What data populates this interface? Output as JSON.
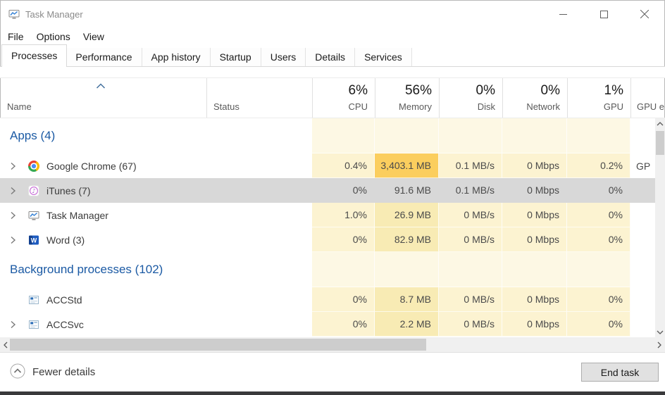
{
  "window": {
    "title": "Task Manager"
  },
  "menu": {
    "items": [
      "File",
      "Options",
      "View"
    ]
  },
  "tabs": [
    {
      "label": "Processes",
      "active": true
    },
    {
      "label": "Performance",
      "active": false
    },
    {
      "label": "App history",
      "active": false
    },
    {
      "label": "Startup",
      "active": false
    },
    {
      "label": "Users",
      "active": false
    },
    {
      "label": "Details",
      "active": false
    },
    {
      "label": "Services",
      "active": false
    }
  ],
  "table": {
    "name_header": "Name",
    "status_header": "Status",
    "usage_headers": [
      {
        "id": "cpu",
        "percent": "6%",
        "label": "CPU"
      },
      {
        "id": "memory",
        "percent": "56%",
        "label": "Memory"
      },
      {
        "id": "disk",
        "percent": "0%",
        "label": "Disk"
      },
      {
        "id": "network",
        "percent": "0%",
        "label": "Network"
      },
      {
        "id": "gpu",
        "percent": "1%",
        "label": "GPU"
      },
      {
        "id": "gpu-engine",
        "percent": "",
        "label": "GPU e"
      }
    ],
    "rows": [
      {
        "type": "section",
        "label": "Apps (4)"
      },
      {
        "type": "process",
        "name": "Google Chrome (67)",
        "icon": "chrome",
        "expandable": true,
        "selected": false,
        "status": "",
        "cpu": "0.4%",
        "memory": "3,403.1 MB",
        "disk": "0.1 MB/s",
        "network": "0 Mbps",
        "gpu": "0.2%",
        "gpu_engine": "GP",
        "heat": {
          "cpu": 1,
          "memory": 3,
          "disk": 1,
          "network": 1,
          "gpu": 1
        }
      },
      {
        "type": "process",
        "name": "iTunes (7)",
        "icon": "itunes",
        "expandable": true,
        "selected": true,
        "status": "",
        "cpu": "0%",
        "memory": "91.6 MB",
        "disk": "0.1 MB/s",
        "network": "0 Mbps",
        "gpu": "0%",
        "gpu_engine": "",
        "heat": {
          "cpu": 1,
          "memory": 2,
          "disk": 1,
          "network": 1,
          "gpu": 1
        }
      },
      {
        "type": "process",
        "name": "Task Manager",
        "icon": "task-manager",
        "expandable": true,
        "selected": false,
        "status": "",
        "cpu": "1.0%",
        "memory": "26.9 MB",
        "disk": "0 MB/s",
        "network": "0 Mbps",
        "gpu": "0%",
        "gpu_engine": "",
        "heat": {
          "cpu": 1,
          "memory": 2,
          "disk": 1,
          "network": 1,
          "gpu": 1
        }
      },
      {
        "type": "process",
        "name": "Word (3)",
        "icon": "word",
        "expandable": true,
        "selected": false,
        "status": "",
        "cpu": "0%",
        "memory": "82.9 MB",
        "disk": "0 MB/s",
        "network": "0 Mbps",
        "gpu": "0%",
        "gpu_engine": "",
        "heat": {
          "cpu": 1,
          "memory": 2,
          "disk": 1,
          "network": 1,
          "gpu": 1
        }
      },
      {
        "type": "section",
        "label": "Background processes (102)"
      },
      {
        "type": "process",
        "name": "ACCStd",
        "icon": "generic-app",
        "expandable": false,
        "selected": false,
        "status": "",
        "cpu": "0%",
        "memory": "8.7 MB",
        "disk": "0 MB/s",
        "network": "0 Mbps",
        "gpu": "0%",
        "gpu_engine": "",
        "heat": {
          "cpu": 1,
          "memory": 2,
          "disk": 1,
          "network": 1,
          "gpu": 1
        }
      },
      {
        "type": "process",
        "name": "ACCSvc",
        "icon": "generic-app",
        "expandable": true,
        "selected": false,
        "status": "",
        "cpu": "0%",
        "memory": "2.2 MB",
        "disk": "0 MB/s",
        "network": "0 Mbps",
        "gpu": "0%",
        "gpu_engine": "",
        "heat": {
          "cpu": 1,
          "memory": 2,
          "disk": 1,
          "network": 1,
          "gpu": 1
        }
      }
    ]
  },
  "footer": {
    "toggle_label": "Fewer details",
    "end_task": "End task"
  },
  "colors": {
    "heat_0": "#fdf8e4",
    "heat_1": "#fcf3d1",
    "heat_2": "#f8ebb4",
    "heat_3": "#fbce5e",
    "selected_row": "#d8d8d8",
    "section_text": "#1b5aa4",
    "title_text": "#8a8a8a",
    "sort_caret": "#44719e"
  }
}
